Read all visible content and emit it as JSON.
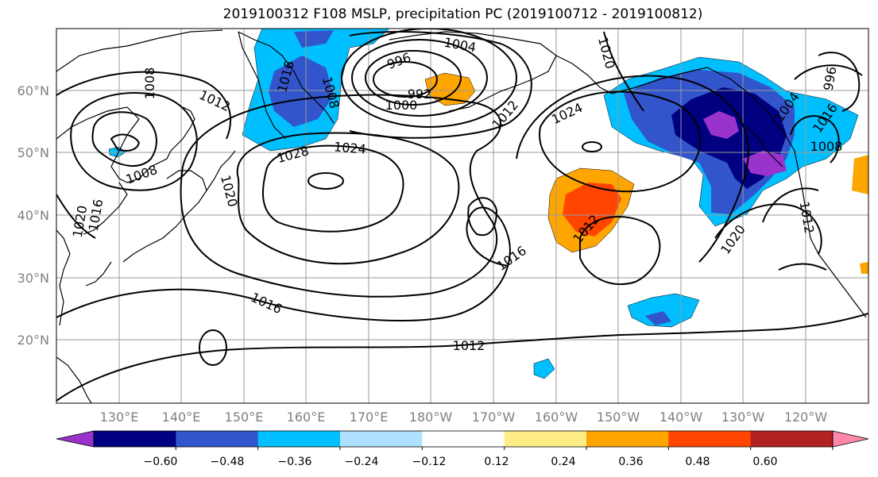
{
  "title": "2019100312 F108 MSLP, precipitation PC (2019100712 - 2019100812)",
  "lat_labels": [
    "60°N",
    "50°N",
    "40°N",
    "30°N",
    "20°N"
  ],
  "lon_labels": [
    "130°E",
    "140°E",
    "150°E",
    "160°E",
    "170°E",
    "180°W",
    "170°W",
    "160°W",
    "150°W",
    "140°W",
    "130°W",
    "120°W"
  ],
  "contour_labels": [
    "1008",
    "1012",
    "1008",
    "1020",
    "1016",
    "1016",
    "1028",
    "1024",
    "1020",
    "1016",
    "1008",
    "996",
    "992",
    "1000",
    "1004",
    "1012",
    "1020",
    "1024",
    "1012",
    "1016",
    "1016",
    "1012",
    "1004",
    "996",
    "1008",
    "1020",
    "1012"
  ],
  "colorbar": {
    "colors": [
      "#9933cc",
      "#000080",
      "#3355cc",
      "#00bfff",
      "#b0e0ff",
      "#ffffff",
      "#ffee88",
      "#ffa500",
      "#ff4500",
      "#b22222",
      "#ff88aa"
    ],
    "ticks": [
      "−0.60",
      "−0.48",
      "−0.36",
      "−0.24",
      "−0.12",
      "0.12",
      "0.24",
      "0.36",
      "0.48",
      "0.60"
    ]
  }
}
